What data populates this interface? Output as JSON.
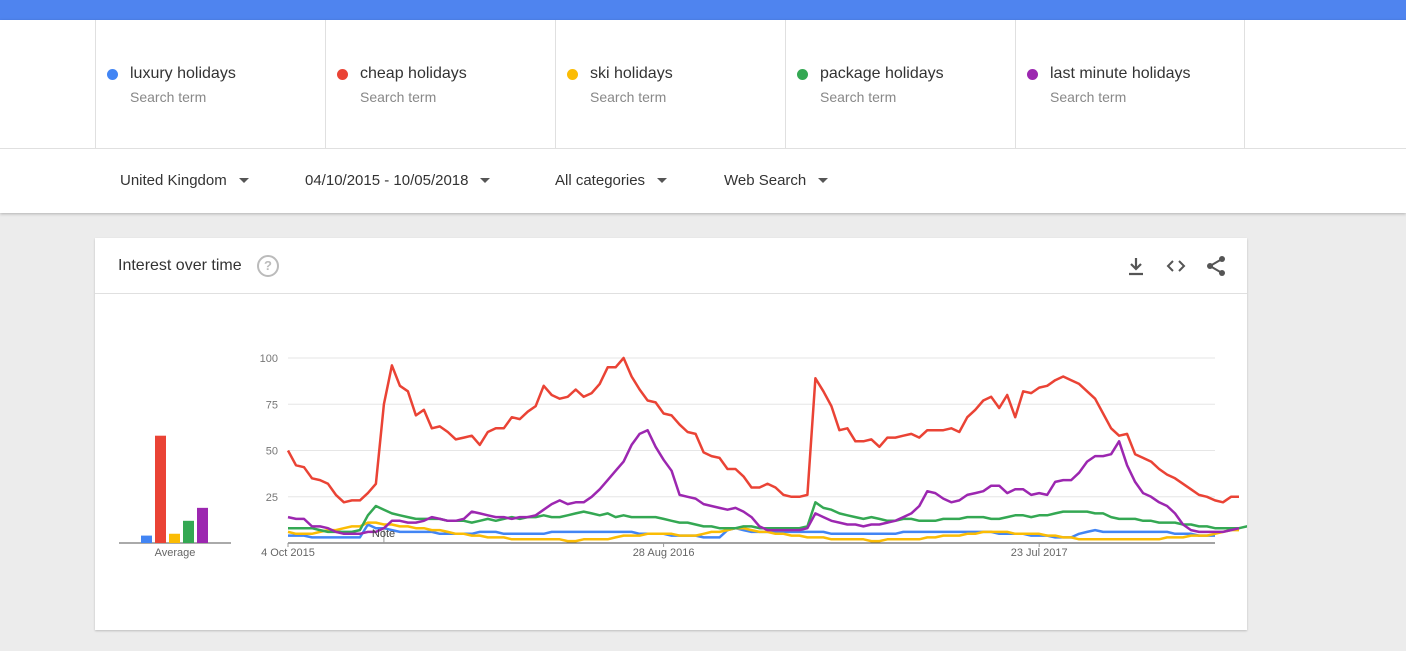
{
  "terms": [
    {
      "name": "luxury holidays",
      "sub": "Search term",
      "color": "#4285f4"
    },
    {
      "name": "cheap holidays",
      "sub": "Search term",
      "color": "#ea4335"
    },
    {
      "name": "ski holidays",
      "sub": "Search term",
      "color": "#fbbc04"
    },
    {
      "name": "package holidays",
      "sub": "Search term",
      "color": "#34a853"
    },
    {
      "name": "last minute holidays",
      "sub": "Search term",
      "color": "#9c27b0"
    }
  ],
  "filters": {
    "region": "United Kingdom",
    "date_range": "04/10/2015 - 10/05/2018",
    "category": "All categories",
    "search_type": "Web Search"
  },
  "card": {
    "title": "Interest over time",
    "help_icon": "?",
    "icons": [
      "download-icon",
      "embed-icon",
      "share-icon"
    ]
  },
  "chart_data": {
    "type": "line",
    "ylim": [
      0,
      100
    ],
    "y_ticks": [
      "100",
      "75",
      "50",
      "25"
    ],
    "x_tick_labels": [
      "4 Oct 2015",
      "28 Aug 2016",
      "23 Jul 2017"
    ],
    "note_label": "Note",
    "average_label": "Average",
    "averages": [
      4,
      58,
      5,
      12,
      19
    ],
    "series": [
      {
        "name": "luxury holidays",
        "color": "#4285f4",
        "values": [
          4,
          4,
          4,
          3,
          3,
          3,
          3,
          3,
          3,
          3,
          10,
          8,
          8,
          7,
          6,
          6,
          6,
          6,
          6,
          5,
          5,
          5,
          5,
          5,
          6,
          6,
          6,
          5,
          5,
          5,
          5,
          5,
          5,
          6,
          6,
          6,
          6,
          6,
          6,
          6,
          6,
          6,
          6,
          6,
          5,
          5,
          5,
          5,
          4,
          4,
          4,
          4,
          3,
          3,
          3,
          7,
          8,
          7,
          6,
          6,
          6,
          6,
          6,
          6,
          6,
          6,
          6,
          6,
          5,
          5,
          5,
          5,
          5,
          5,
          5,
          5,
          5,
          6,
          6,
          6,
          6,
          6,
          6,
          6,
          6,
          6,
          6,
          6,
          6,
          5,
          5,
          5,
          5,
          4,
          4,
          4,
          3,
          3,
          3,
          5,
          6,
          7,
          6,
          6,
          6,
          6,
          6,
          6,
          6,
          6,
          6,
          5,
          5,
          5,
          4,
          4,
          4
        ]
      },
      {
        "name": "cheap holidays",
        "color": "#ea4335",
        "values": [
          50,
          42,
          41,
          35,
          34,
          32,
          26,
          22,
          23,
          23,
          27,
          32,
          75,
          96,
          85,
          82,
          69,
          72,
          62,
          63,
          60,
          56,
          57,
          58,
          53,
          60,
          62,
          62,
          68,
          67,
          71,
          74,
          85,
          80,
          78,
          79,
          83,
          79,
          81,
          86,
          95,
          95,
          100,
          90,
          83,
          77,
          76,
          70,
          69,
          64,
          60,
          59,
          49,
          47,
          46,
          40,
          40,
          36,
          30,
          30,
          32,
          30,
          26,
          25,
          25,
          26,
          89,
          82,
          74,
          61,
          62,
          55,
          55,
          56,
          52,
          57,
          57,
          58,
          59,
          57,
          61,
          61,
          61,
          62,
          60,
          68,
          72,
          77,
          79,
          73,
          80,
          68,
          82,
          81,
          84,
          85,
          88,
          90,
          88,
          86,
          82,
          78,
          70,
          62,
          58,
          59,
          48,
          46,
          44,
          40,
          37,
          35,
          32,
          29,
          26,
          25,
          23,
          22,
          25,
          25
        ]
      },
      {
        "name": "ski holidays",
        "color": "#fbbc04",
        "values": [
          6,
          5,
          5,
          5,
          6,
          7,
          7,
          8,
          9,
          9,
          11,
          11,
          10,
          10,
          9,
          9,
          8,
          8,
          7,
          7,
          6,
          5,
          5,
          4,
          4,
          3,
          3,
          3,
          2,
          2,
          2,
          2,
          2,
          2,
          2,
          1,
          1,
          2,
          2,
          2,
          2,
          3,
          4,
          4,
          4,
          5,
          5,
          5,
          5,
          4,
          4,
          4,
          5,
          6,
          6,
          7,
          8,
          8,
          7,
          6,
          6,
          5,
          5,
          4,
          4,
          3,
          3,
          3,
          2,
          2,
          2,
          2,
          2,
          1,
          1,
          2,
          2,
          2,
          2,
          2,
          3,
          3,
          4,
          4,
          4,
          5,
          5,
          6,
          6,
          6,
          6,
          5,
          5,
          5,
          5,
          4,
          4,
          3,
          3,
          2,
          2,
          2,
          2,
          2,
          2,
          2,
          2,
          2,
          2,
          2,
          3,
          3,
          3,
          4,
          4,
          4,
          5,
          6,
          7,
          7
        ]
      },
      {
        "name": "package holidays",
        "color": "#34a853",
        "values": [
          8,
          8,
          8,
          8,
          7,
          6,
          6,
          6,
          6,
          7,
          15,
          20,
          18,
          16,
          15,
          14,
          13,
          13,
          13,
          13,
          12,
          12,
          12,
          11,
          12,
          13,
          12,
          13,
          14,
          13,
          14,
          14,
          15,
          14,
          14,
          15,
          16,
          17,
          16,
          15,
          16,
          14,
          15,
          14,
          14,
          14,
          14,
          13,
          12,
          11,
          11,
          10,
          9,
          9,
          8,
          8,
          8,
          9,
          9,
          8,
          8,
          8,
          8,
          8,
          8,
          9,
          22,
          19,
          18,
          16,
          15,
          14,
          13,
          14,
          13,
          12,
          12,
          13,
          13,
          12,
          12,
          12,
          13,
          13,
          13,
          14,
          14,
          14,
          13,
          13,
          14,
          15,
          15,
          14,
          15,
          15,
          16,
          17,
          17,
          17,
          17,
          16,
          16,
          14,
          13,
          13,
          13,
          12,
          12,
          11,
          11,
          11,
          10,
          10,
          9,
          9,
          8,
          8,
          8,
          8,
          9,
          9
        ]
      },
      {
        "name": "last minute holidays",
        "color": "#9c27b0",
        "values": [
          14,
          13,
          13,
          9,
          9,
          8,
          6,
          5,
          5,
          5,
          6,
          6,
          8,
          12,
          12,
          11,
          11,
          12,
          14,
          13,
          12,
          12,
          13,
          17,
          16,
          15,
          14,
          14,
          13,
          14,
          14,
          15,
          18,
          21,
          23,
          21,
          22,
          22,
          25,
          29,
          34,
          39,
          44,
          53,
          59,
          61,
          52,
          45,
          39,
          26,
          25,
          24,
          21,
          20,
          19,
          18,
          19,
          17,
          14,
          9,
          7,
          7,
          7,
          7,
          7,
          8,
          16,
          14,
          12,
          11,
          10,
          10,
          9,
          10,
          10,
          11,
          12,
          14,
          16,
          20,
          28,
          27,
          24,
          22,
          23,
          26,
          27,
          28,
          31,
          31,
          27,
          29,
          29,
          26,
          27,
          26,
          33,
          34,
          34,
          38,
          44,
          47,
          47,
          48,
          55,
          42,
          33,
          27,
          25,
          22,
          20,
          16,
          10,
          7,
          6,
          6,
          6,
          6,
          7,
          8
        ]
      }
    ]
  }
}
